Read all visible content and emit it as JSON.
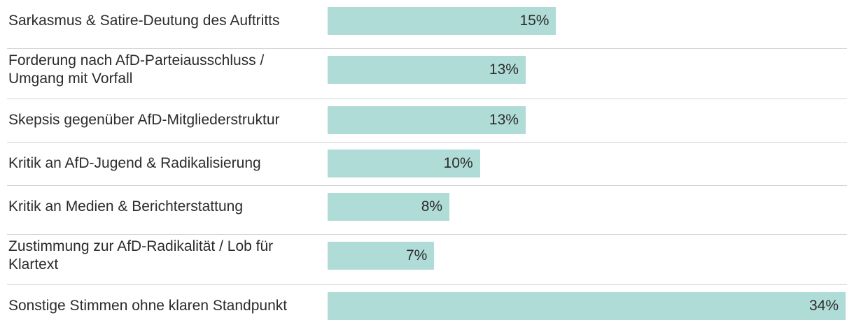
{
  "chart_data": {
    "type": "bar",
    "orientation": "horizontal",
    "categories": [
      "Sarkasmus & Satire-Deutung des Auftritts",
      "Forderung nach AfD-Parteiausschluss / Umgang mit Vorfall",
      "Skepsis gegenüber AfD-Mitgliederstruktur",
      "Kritik an AfD-Jugend & Radikalisierung",
      "Kritik an Medien & Berichterstattung",
      "Zustimmung zur AfD-Radikalität / Lob für Klartext",
      "Sonstige Stimmen ohne klaren Standpunkt"
    ],
    "values": [
      15,
      13,
      13,
      10,
      8,
      7,
      34
    ],
    "value_labels": [
      "15%",
      "13%",
      "13%",
      "10%",
      "8%",
      "7%",
      "34%"
    ],
    "xlim": [
      0,
      34
    ],
    "grid": false,
    "bar_color": "#b0dcd7"
  }
}
